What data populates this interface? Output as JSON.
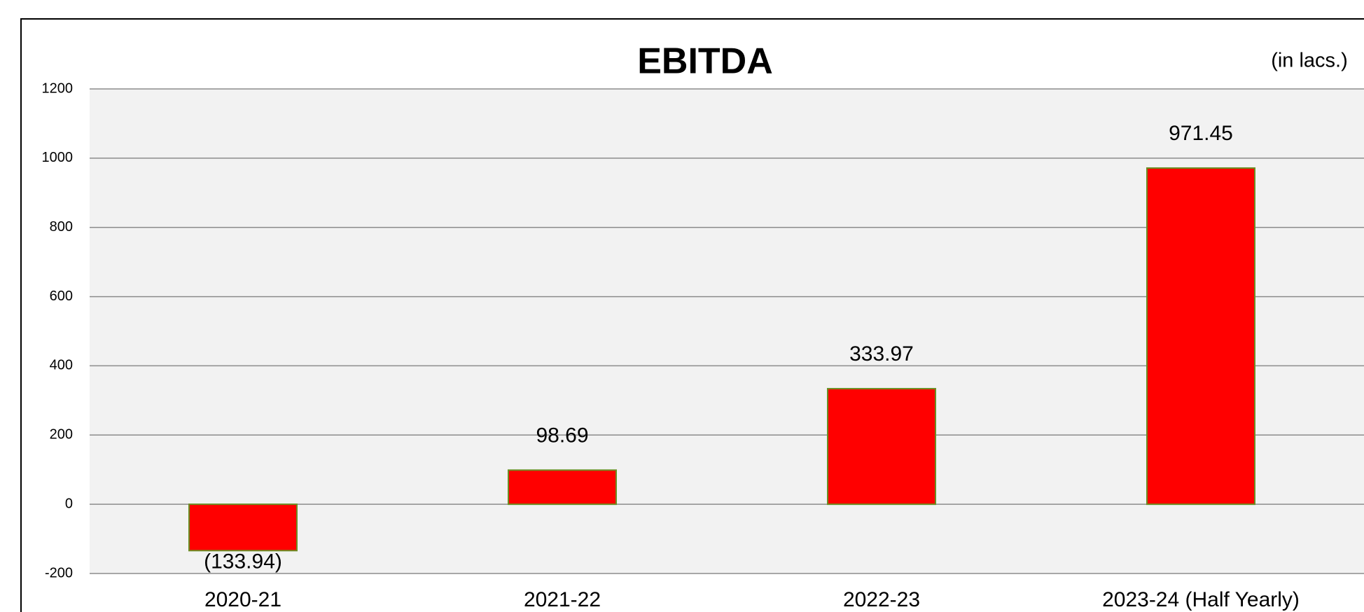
{
  "chart_data": {
    "type": "bar",
    "title": "EBITDA",
    "subtitle": "(in lacs.)",
    "categories": [
      "2020-21",
      "2021-22",
      "2022-23",
      "2023-24 (Half Yearly)"
    ],
    "values": [
      -133.94,
      98.69,
      333.97,
      971.45
    ],
    "value_labels": [
      "(133.94)",
      "98.69",
      "333.97",
      "971.45"
    ],
    "color": "#ff0000",
    "ylim": [
      -200,
      1200
    ],
    "yticks": [
      -200,
      0,
      200,
      400,
      600,
      800,
      1000,
      1200
    ],
    "grid": true
  }
}
